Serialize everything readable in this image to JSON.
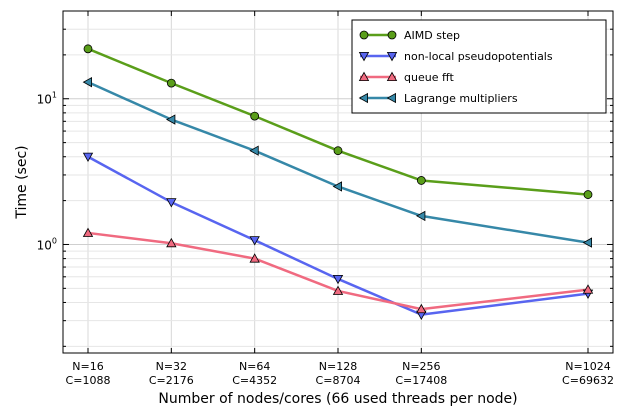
{
  "chart_data": {
    "type": "line",
    "xlabel": "Number of nodes/cores (66 used threads per node)",
    "ylabel": "Time (sec)",
    "y_scale": "log",
    "ylim": [
      0.18,
      40
    ],
    "grid": true,
    "legend_position": "top-right",
    "x": [
      16,
      32,
      64,
      128,
      256,
      1024
    ],
    "x_scale": "log2",
    "x_tick_labels": [
      [
        "N=16",
        "C=1088"
      ],
      [
        "N=32",
        "C=2176"
      ],
      [
        "N=64",
        "C=4352"
      ],
      [
        "N=128",
        "C=8704"
      ],
      [
        "N=256",
        "C=17408"
      ],
      [
        "N=1024",
        "C=69632"
      ]
    ],
    "y_ticks": [
      {
        "value": 1,
        "base": "10",
        "exp": "0"
      },
      {
        "value": 10,
        "base": "10",
        "exp": "1"
      }
    ],
    "series": [
      {
        "name": "AIMD step",
        "marker": "circle",
        "color": "#5a9e1a",
        "values": [
          22.0,
          12.8,
          7.6,
          4.4,
          2.75,
          2.2
        ]
      },
      {
        "name": "non-local pseudopotentials",
        "marker": "triangle-down",
        "color": "#5865f0",
        "values": [
          4.0,
          1.95,
          1.07,
          0.58,
          0.33,
          0.46
        ]
      },
      {
        "name": "queue fft",
        "marker": "triangle-up",
        "color": "#f06a80",
        "values": [
          1.2,
          1.02,
          0.8,
          0.48,
          0.36,
          0.49
        ]
      },
      {
        "name": "Lagrange multipliers",
        "marker": "triangle-left",
        "color": "#3688a8",
        "values": [
          13.0,
          7.2,
          4.4,
          2.5,
          1.57,
          1.03
        ]
      }
    ]
  }
}
